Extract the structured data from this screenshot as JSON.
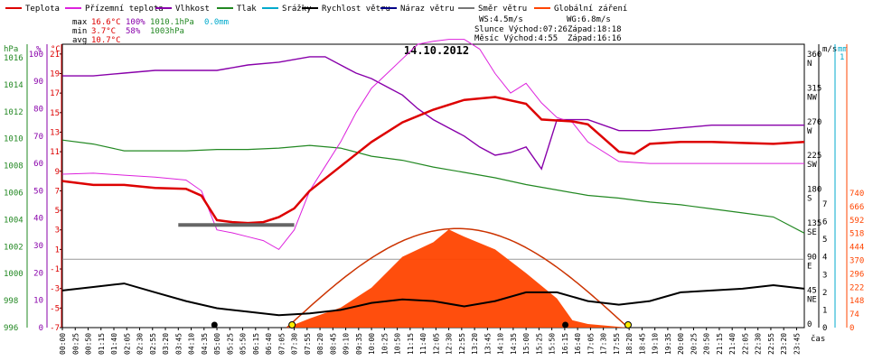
{
  "chart_data": {
    "type": "line",
    "title": "14.10.2012",
    "xlabel": "čas",
    "legend": [
      {
        "name": "Teplota",
        "color": "#dd0000"
      },
      {
        "name": "Přízemní teplota",
        "color": "#dd22dd"
      },
      {
        "name": "Vlhkost",
        "color": "#8800aa"
      },
      {
        "name": "Tlak",
        "color": "#228822"
      },
      {
        "name": "Srážky",
        "color": "#00aacc"
      },
      {
        "name": "Rychlost větru",
        "color": "#000000"
      },
      {
        "name": "Náraz větru",
        "color": "#000088"
      },
      {
        "name": "Směr větru",
        "color": "#777777"
      },
      {
        "name": "Globální záření",
        "color": "#ff4400"
      }
    ],
    "stats": {
      "max": {
        "label": "max",
        "temp": "16.6°C",
        "hum": "100%",
        "press": "1010.1hPa",
        "rain": "0.0mm"
      },
      "min": {
        "label": "min",
        "temp": "3.7°C",
        "hum": "58%",
        "press": "1003hPa"
      },
      "avg": {
        "label": "avg",
        "temp": "10.7°C"
      }
    },
    "info": {
      "ws": "WS:4.5m/s",
      "wg": "WG:6.8m/s",
      "sun": "Slunce Východ:07:26",
      "sun_set": "Západ:18:18",
      "moon": "Měsíc Východ:4:55",
      "moon_set": "Západ:16:16"
    },
    "axes": {
      "hpa": {
        "unit": "hPa",
        "ticks": [
          "1016",
          "1014",
          "1012",
          "1010",
          "1008",
          "1006",
          "1004",
          "1002",
          "1000",
          "998",
          "996"
        ],
        "range": [
          996,
          1017
        ]
      },
      "pct": {
        "unit": "%",
        "ticks": [
          "100",
          "90",
          "80",
          "70",
          "60",
          "50",
          "40",
          "30",
          "20",
          "10",
          "0"
        ]
      },
      "deg": {
        "unit": "°C",
        "ticks": [
          "21",
          "19",
          "17",
          "15",
          "13",
          "11",
          "9",
          "7",
          "5",
          "3",
          "1",
          "-1",
          "-3",
          "-5",
          "-7"
        ],
        "range": [
          -7,
          22
        ]
      },
      "dir": {
        "unit": "m/s",
        "ticks": [
          "360 N",
          "315 NW",
          "270 W",
          "225 SW",
          "180 S",
          "135 SE",
          "90 E",
          "45 NE",
          "0"
        ]
      },
      "ms": {
        "ticks": [
          "7",
          "6",
          "5",
          "4",
          "3",
          "2",
          "1",
          "0"
        ]
      },
      "mm": {
        "unit": "mm",
        "ticks": [
          "1"
        ]
      },
      "wm2": {
        "ticks": [
          "740",
          "666",
          "592",
          "518",
          "444",
          "370",
          "296",
          "222",
          "148",
          "74",
          "0"
        ]
      }
    },
    "x_ticks": [
      "00:00",
      "00:25",
      "00:50",
      "01:15",
      "01:40",
      "02:05",
      "02:30",
      "02:55",
      "03:20",
      "03:45",
      "04:10",
      "04:35",
      "05:00",
      "05:25",
      "05:50",
      "06:15",
      "06:40",
      "07:05",
      "07:30",
      "07:55",
      "08:20",
      "08:45",
      "09:10",
      "09:35",
      "10:00",
      "10:25",
      "10:50",
      "11:15",
      "11:40",
      "12:05",
      "12:30",
      "12:55",
      "13:20",
      "13:45",
      "14:10",
      "14:35",
      "15:00",
      "15:25",
      "15:50",
      "16:15",
      "16:40",
      "17:05",
      "17:30",
      "17:55",
      "18:20",
      "18:45",
      "19:10",
      "19:35",
      "20:00",
      "20:25",
      "20:50",
      "21:15",
      "21:40",
      "22:05",
      "22:30",
      "22:55",
      "23:20",
      "23:45"
    ],
    "series": [
      {
        "name": "Teplota",
        "unit": "°C",
        "x_hours": [
          0,
          1,
          2,
          3,
          4,
          4.5,
          5,
          5.5,
          6,
          6.5,
          7,
          7.5,
          8,
          9,
          10,
          11,
          12,
          13,
          14,
          15,
          15.5,
          16,
          16.5,
          17,
          18,
          18.5,
          19,
          20,
          21,
          22,
          23,
          24
        ],
        "values": [
          8,
          7.6,
          7.6,
          7.3,
          7.2,
          6.5,
          4,
          3.8,
          3.7,
          3.8,
          4.3,
          5.2,
          7,
          9.5,
          12,
          14,
          15.3,
          16.3,
          16.6,
          15.9,
          14.3,
          14.2,
          14.1,
          13.8,
          11,
          10.8,
          11.8,
          12,
          12,
          11.9,
          11.8,
          12
        ]
      },
      {
        "name": "Přízemní teplota",
        "unit": "°C",
        "x_hours": [
          0,
          1,
          2,
          3,
          4,
          4.5,
          5,
          5.5,
          6,
          6.5,
          7,
          7.5,
          8,
          8.5,
          9,
          9.5,
          10,
          10.5,
          11,
          11.5,
          12,
          12.5,
          13,
          13.5,
          14,
          14.5,
          15,
          15.5,
          16,
          16.5,
          17,
          18,
          19,
          20,
          21,
          22,
          23,
          24
        ],
        "values": [
          8.7,
          8.8,
          8.6,
          8.4,
          8.1,
          7,
          3,
          2.7,
          2.3,
          1.9,
          1,
          3,
          7,
          9.5,
          12,
          15,
          17.5,
          19,
          20.5,
          22,
          22.3,
          22.5,
          22.5,
          21.5,
          19,
          17,
          18,
          16,
          14.5,
          14,
          12,
          10,
          9.8,
          9.8,
          9.8,
          9.8,
          9.8,
          9.8
        ]
      },
      {
        "name": "Vlhkost",
        "unit": "%",
        "x_hours": [
          0,
          1,
          2,
          3,
          4,
          5,
          6,
          7,
          8,
          8.5,
          9,
          9.5,
          10,
          10.5,
          11,
          11.5,
          12,
          12.5,
          13,
          13.5,
          14,
          14.5,
          15,
          15.5,
          16,
          16.5,
          17,
          18,
          19,
          20,
          21,
          22,
          23,
          24
        ],
        "values": [
          92,
          92,
          93,
          94,
          94,
          94,
          96,
          97,
          99,
          99,
          96,
          93,
          91,
          88,
          85,
          80,
          76,
          73,
          70,
          66,
          63,
          64,
          66,
          58,
          76,
          76,
          76,
          72,
          72,
          73,
          74,
          74,
          74,
          74
        ]
      },
      {
        "name": "Tlak",
        "unit": "hPa",
        "x_hours": [
          0,
          1,
          2,
          3,
          4,
          5,
          6,
          7,
          8,
          9,
          10,
          11,
          12,
          13,
          14,
          15,
          16,
          17,
          18,
          19,
          20,
          21,
          22,
          23,
          24
        ],
        "values": [
          1009.9,
          1009.6,
          1009.1,
          1009.1,
          1009.1,
          1009.2,
          1009.2,
          1009.3,
          1009.5,
          1009.3,
          1008.7,
          1008.4,
          1007.9,
          1007.5,
          1007.1,
          1006.6,
          1006.2,
          1005.8,
          1005.6,
          1005.3,
          1005.1,
          1004.8,
          1004.5,
          1004.2,
          1003
        ]
      },
      {
        "name": "Globální záření",
        "unit": "W/m2",
        "x_hours": [
          7.26,
          8,
          9,
          10,
          11,
          12,
          12.5,
          13,
          14,
          15,
          16,
          16.5,
          17,
          18.3
        ],
        "values": [
          0,
          50,
          110,
          220,
          390,
          470,
          540,
          500,
          430,
          300,
          160,
          40,
          20,
          0
        ]
      },
      {
        "name": "Rychlost větru",
        "unit": "m/s",
        "x_hours": [
          0,
          1,
          2,
          3,
          4,
          5,
          6,
          7,
          8,
          9,
          10,
          11,
          12,
          13,
          14,
          15,
          16,
          17,
          18,
          19,
          20,
          21,
          22,
          23,
          24
        ],
        "values": [
          2.1,
          2.3,
          2.5,
          2,
          1.5,
          1.1,
          0.9,
          0.7,
          0.8,
          1,
          1.4,
          1.6,
          1.5,
          1.2,
          1.5,
          2,
          2,
          1.5,
          1.3,
          1.5,
          2,
          2.1,
          2.2,
          2.4,
          2.2
        ]
      }
    ]
  }
}
